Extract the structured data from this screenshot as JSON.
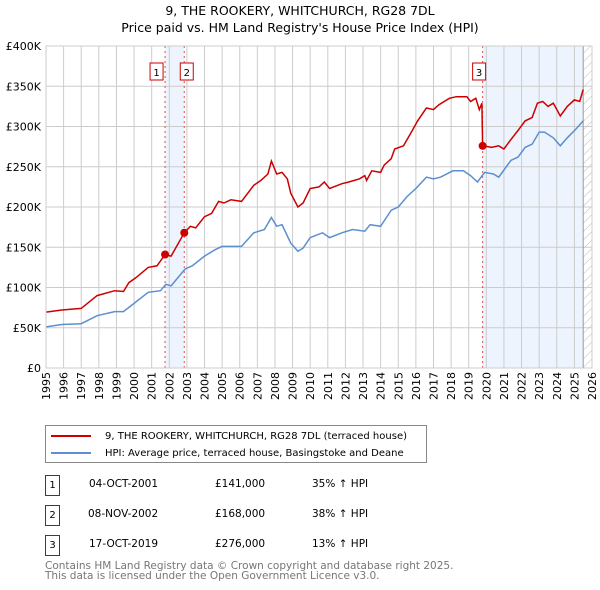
{
  "chart_data": {
    "type": "line",
    "title": "9, THE ROOKERY, WHITCHURCH, RG28 7DL",
    "subtitle": "Price paid vs. HM Land Registry's House Price Index (HPI)",
    "xlim": [
      1995,
      2026
    ],
    "ylim": [
      0,
      400000
    ],
    "x_ticks": [
      "1995",
      "1996",
      "1997",
      "1998",
      "1999",
      "2000",
      "2001",
      "2002",
      "2003",
      "2004",
      "2005",
      "2006",
      "2007",
      "2008",
      "2009",
      "2010",
      "2011",
      "2012",
      "2013",
      "2014",
      "2015",
      "2016",
      "2017",
      "2018",
      "2019",
      "2020",
      "2021",
      "2022",
      "2023",
      "2024",
      "2025",
      "2026"
    ],
    "y_ticks": [
      {
        "v": 0,
        "label": "£0"
      },
      {
        "v": 50000,
        "label": "£50K"
      },
      {
        "v": 100000,
        "label": "£100K"
      },
      {
        "v": 150000,
        "label": "£150K"
      },
      {
        "v": 200000,
        "label": "£200K"
      },
      {
        "v": 250000,
        "label": "£250K"
      },
      {
        "v": 300000,
        "label": "£300K"
      },
      {
        "v": 350000,
        "label": "£350K"
      },
      {
        "v": 400000,
        "label": "£400K"
      }
    ],
    "grid": true,
    "data_end": 2025.5,
    "series": [
      {
        "name": "9, THE ROOKERY, WHITCHURCH, RG28 7DL (terraced house)",
        "color": "#cc0000",
        "x": [
          1995,
          1995.9,
          1997,
          1997.9,
          1998.9,
          1999.4,
          1999.7,
          2000.1,
          2000.8,
          2001.3,
          2001.76,
          2002.1,
          2002.85,
          2003.2,
          2003.5,
          2004,
          2004.4,
          2004.8,
          2005.1,
          2005.5,
          2006.1,
          2006.8,
          2007.2,
          2007.6,
          2007.8,
          2008.1,
          2008.4,
          2008.7,
          2008.9,
          2009.3,
          2009.6,
          2010,
          2010.5,
          2010.8,
          2011.1,
          2011.8,
          2012.2,
          2012.8,
          2013.1,
          2013.2,
          2013.5,
          2014,
          2014.2,
          2014.6,
          2014.8,
          2015.3,
          2015.8,
          2016.1,
          2016.6,
          2017,
          2017.3,
          2017.9,
          2018.3,
          2018.9,
          2019.1,
          2019.4,
          2019.6,
          2019.75,
          2019.79,
          2020.3,
          2020.7,
          2021,
          2021.4,
          2021.8,
          2022.2,
          2022.6,
          2022.9,
          2023.2,
          2023.5,
          2023.8,
          2024.2,
          2024.6,
          2025,
          2025.3,
          2025.5
        ],
        "y": [
          69500,
          72000,
          74000,
          90000,
          96000,
          95000,
          106000,
          112000,
          125000,
          127000,
          141000,
          139000,
          168000,
          176000,
          174000,
          188000,
          192000,
          207000,
          205000,
          209000,
          207000,
          227000,
          233000,
          241000,
          257000,
          241000,
          243000,
          235000,
          217000,
          200000,
          205000,
          223000,
          225000,
          231000,
          223000,
          229000,
          231000,
          235000,
          239000,
          233000,
          245000,
          243000,
          252000,
          260000,
          272000,
          276000,
          295000,
          307000,
          323000,
          321000,
          327000,
          335000,
          337000,
          337000,
          331000,
          335000,
          321000,
          329000,
          276000,
          274000,
          276000,
          272000,
          284000,
          295000,
          307000,
          311000,
          329000,
          331000,
          325000,
          329000,
          313000,
          325000,
          333000,
          331000,
          346000
        ]
      },
      {
        "name": "HPI: Average price, terraced house, Basingstoke and Deane",
        "color": "#5b8fd0",
        "x": [
          1995,
          1995.9,
          1997,
          1997.9,
          1998.9,
          1999.4,
          2000.1,
          2000.8,
          2001.5,
          2001.8,
          2002.1,
          2002.9,
          2003.3,
          2004,
          2004.6,
          2005,
          2005.5,
          2006.1,
          2006.8,
          2007.4,
          2007.8,
          2008.1,
          2008.4,
          2008.9,
          2009.3,
          2009.6,
          2010,
          2010.7,
          2011.1,
          2011.8,
          2012.4,
          2013.1,
          2013.4,
          2014,
          2014.6,
          2015,
          2015.5,
          2016,
          2016.6,
          2017,
          2017.4,
          2018.1,
          2018.7,
          2019.1,
          2019.5,
          2019.9,
          2020.4,
          2020.7,
          2021.4,
          2021.8,
          2022.2,
          2022.6,
          2023,
          2023.3,
          2023.8,
          2024.2,
          2024.6,
          2025.1,
          2025.5
        ],
        "y": [
          51000,
          54000,
          55000,
          65000,
          70000,
          70000,
          82000,
          94000,
          96000,
          104000,
          102000,
          123000,
          127000,
          139000,
          147000,
          151000,
          151000,
          151000,
          168000,
          172000,
          187000,
          176000,
          178000,
          155000,
          145000,
          149000,
          162000,
          168000,
          162000,
          168000,
          172000,
          170000,
          178000,
          176000,
          196000,
          200000,
          213000,
          223000,
          237000,
          235000,
          237000,
          245000,
          245000,
          239000,
          231000,
          243000,
          241000,
          237000,
          258000,
          262000,
          274000,
          278000,
          293000,
          293000,
          286000,
          276000,
          286000,
          297000,
          307000
        ]
      }
    ],
    "sales": [
      {
        "n": "1",
        "x": 2001.76,
        "date": "04-OCT-2001",
        "price": "£141,000",
        "value": 141000,
        "hpi": "35% ↑ HPI"
      },
      {
        "n": "2",
        "x": 2002.85,
        "date": "08-NOV-2002",
        "price": "£168,000",
        "value": 168000,
        "hpi": "38% ↑ HPI"
      },
      {
        "n": "3",
        "x": 2019.79,
        "date": "17-OCT-2019",
        "price": "£276,000",
        "value": 276000,
        "hpi": "13% ↑ HPI"
      }
    ]
  },
  "legend": {
    "property": "9, THE ROOKERY, WHITCHURCH, RG28 7DL (terraced house)",
    "hpi": "HPI: Average price, terraced house, Basingstoke and Deane"
  },
  "footer": {
    "line1": "Contains HM Land Registry data © Crown copyright and database right 2025.",
    "line2": "This data is licensed under the Open Government Licence v3.0."
  },
  "colors": {
    "red": "#cc0000",
    "blue": "#5b8fd0",
    "shade": "#eef4fd"
  }
}
